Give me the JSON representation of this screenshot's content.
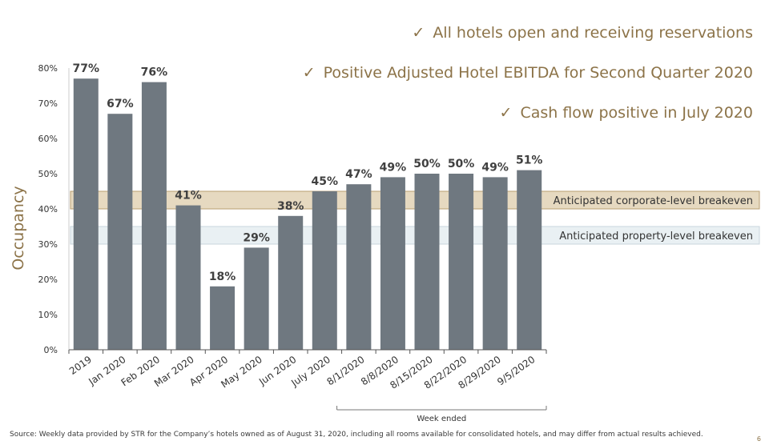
{
  "headlines": [
    {
      "check": "✓",
      "text": "All hotels open and receiving reservations"
    },
    {
      "check": "✓",
      "text": "Positive Adjusted Hotel EBITDA for Second Quarter 2020"
    },
    {
      "check": "✓",
      "text": "Cash flow positive in July 2020"
    }
  ],
  "source_note": "Source:  Weekly data provided by STR for the Company’s hotels owned as of August 31, 2020, including all rooms available for consolidated hotels, and may differ from actual results achieved.",
  "page_number": "6",
  "colors": {
    "bar": "#6f7880",
    "accent_text": "#8c7348",
    "corporate_band_fill": "#e6d9c0",
    "corporate_band_stroke": "#b89e70",
    "property_band_fill": "#e9f0f3",
    "property_band_stroke": "#c9d6dc"
  },
  "chart_data": {
    "type": "bar",
    "ylabel": "Occupancy",
    "xlabel": "",
    "ylim": [
      0,
      80
    ],
    "yticks": [
      0,
      10,
      20,
      30,
      40,
      50,
      60,
      70,
      80
    ],
    "ytick_labels": [
      "0%",
      "10%",
      "20%",
      "30%",
      "40%",
      "50%",
      "60%",
      "70%",
      "80%"
    ],
    "categories": [
      "2019",
      "Jan 2020",
      "Feb 2020",
      "Mar 2020",
      "Apr 2020",
      "May 2020",
      "Jun 2020",
      "July 2020",
      "8/1/2020",
      "8/8/2020",
      "8/15/2020",
      "8/22/2020",
      "8/29/2020",
      "9/5/2020"
    ],
    "values": [
      77,
      67,
      76,
      41,
      18,
      29,
      38,
      45,
      47,
      49,
      50,
      50,
      49,
      51
    ],
    "data_labels": [
      "77%",
      "67%",
      "76%",
      "41%",
      "18%",
      "29%",
      "38%",
      "45%",
      "47%",
      "49%",
      "50%",
      "50%",
      "49%",
      "51%"
    ],
    "bands": [
      {
        "label": "Anticipated corporate-level breakeven",
        "range": [
          40,
          45
        ]
      },
      {
        "label": "Anticipated property-level breakeven",
        "range": [
          30,
          35
        ]
      }
    ],
    "group_bracket": {
      "label": "Week ended",
      "from_category": 8,
      "to_category": 13
    },
    "grid": false
  }
}
